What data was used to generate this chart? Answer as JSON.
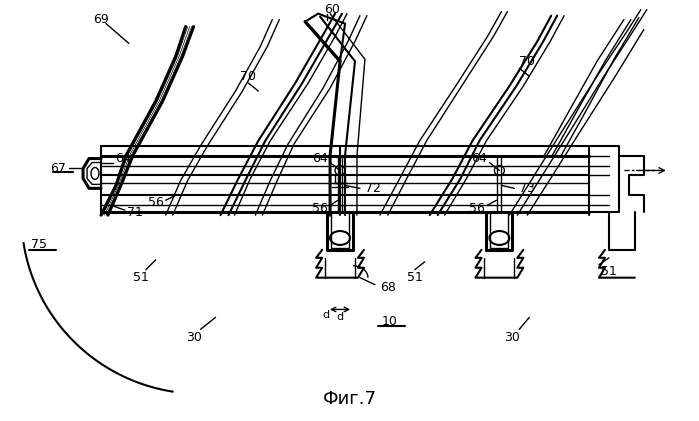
{
  "bg_color": "#ffffff",
  "line_color": "#000000",
  "title": "Фиг.7",
  "lw_thin": 1.0,
  "lw_med": 1.5,
  "lw_thick": 2.2
}
